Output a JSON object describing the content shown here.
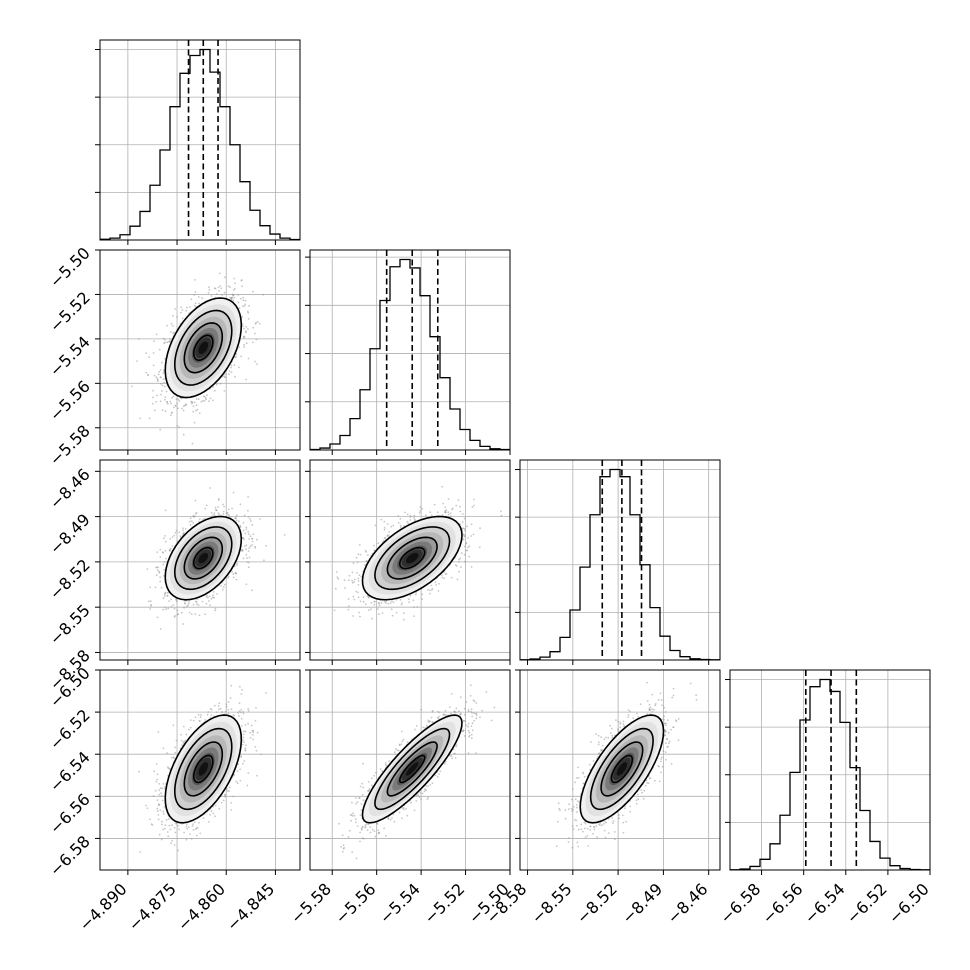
{
  "chart_data": {
    "type": "corner",
    "grid": true,
    "variables": [
      {
        "range": [
          -4.8985,
          -4.8375
        ],
        "ticks": [
          -4.89,
          -4.875,
          -4.86,
          -4.845
        ],
        "tick_labels": [
          "−4.890",
          "−4.875",
          "−4.860",
          "−4.845"
        ],
        "mean": -4.867,
        "sigma": 0.0058,
        "quantiles": [
          -4.8715,
          -4.867,
          -4.8625
        ]
      },
      {
        "range": [
          -5.59,
          -5.5
        ],
        "ticks": [
          -5.58,
          -5.56,
          -5.54,
          -5.52,
          -5.5
        ],
        "tick_labels": [
          "−5.58",
          "−5.56",
          "−5.54",
          "−5.52",
          "−5.50"
        ],
        "mean": -5.544,
        "sigma": 0.0112,
        "quantiles": [
          -5.5555,
          -5.544,
          -5.5325
        ]
      },
      {
        "range": [
          -8.585,
          -8.4525
        ],
        "ticks": [
          -8.58,
          -8.55,
          -8.52,
          -8.49,
          -8.46
        ],
        "tick_labels": [
          "−8.58",
          "−8.55",
          "−8.52",
          "−8.49",
          "−8.46"
        ],
        "mean": -8.5175,
        "sigma": 0.0138,
        "quantiles": [
          -8.5305,
          -8.5175,
          -8.5045
        ]
      },
      {
        "range": [
          -6.595,
          -6.5
        ],
        "ticks": [
          -6.58,
          -6.56,
          -6.54,
          -6.52,
          -6.5
        ],
        "tick_labels": [
          "−6.58",
          "−6.56",
          "−6.54",
          "−6.52",
          "−6.50"
        ],
        "mean": -6.547,
        "sigma": 0.0128,
        "quantiles": [
          -6.559,
          -6.547,
          -6.535
        ]
      }
    ],
    "histograms": [
      {
        "var": 0,
        "bins": 20,
        "counts": [
          3,
          8,
          22,
          58,
          120,
          230,
          378,
          560,
          700,
          775,
          800,
          705,
          560,
          400,
          245,
          125,
          60,
          25,
          8,
          2
        ]
      },
      {
        "var": 1,
        "bins": 20,
        "counts": [
          2,
          8,
          25,
          60,
          130,
          250,
          420,
          620,
          760,
          790,
          755,
          640,
          470,
          300,
          170,
          85,
          40,
          15,
          5,
          2
        ]
      },
      {
        "var": 2,
        "bins": 20,
        "counts": [
          1,
          4,
          12,
          35,
          95,
          210,
          390,
          610,
          770,
          800,
          770,
          610,
          400,
          220,
          100,
          40,
          14,
          5,
          2,
          1
        ]
      },
      {
        "var": 3,
        "bins": 20,
        "counts": [
          1,
          4,
          15,
          45,
          110,
          230,
          410,
          630,
          770,
          800,
          750,
          620,
          430,
          250,
          120,
          50,
          18,
          6,
          2,
          1
        ]
      }
    ],
    "correlations": [
      {
        "x": 0,
        "y": 1,
        "r": 0.45
      },
      {
        "x": 0,
        "y": 2,
        "r": 0.45
      },
      {
        "x": 1,
        "y": 2,
        "r": 0.55
      },
      {
        "x": 0,
        "y": 3,
        "r": 0.55
      },
      {
        "x": 1,
        "y": 3,
        "r": 0.85
      },
      {
        "x": 2,
        "y": 3,
        "r": 0.7
      }
    ],
    "contour_levels_sigma": [
      0.5,
      1.0,
      1.5,
      2.0
    ]
  }
}
